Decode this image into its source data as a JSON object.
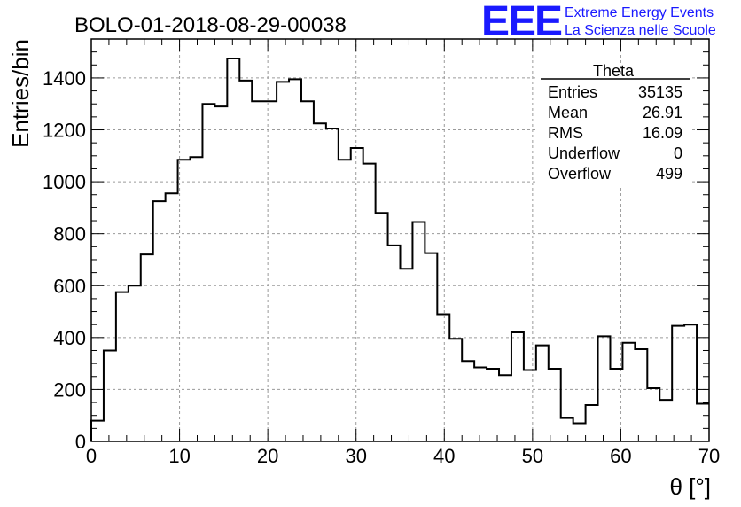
{
  "header": {
    "run_title": "BOLO-01-2018-08-29-00038",
    "logo_text": "EEE",
    "logo_line1": "Extreme Energy Events",
    "logo_line2": "La Scienza nelle Scuole",
    "logo_color": "#1a1aff"
  },
  "stats_box": {
    "title": "Theta",
    "rows": [
      {
        "label": "Entries",
        "value": "35135"
      },
      {
        "label": "Mean",
        "value": "26.91"
      },
      {
        "label": "RMS",
        "value": "16.09"
      },
      {
        "label": "Underflow",
        "value": "0"
      },
      {
        "label": "Overflow",
        "value": "499"
      }
    ]
  },
  "chart_data": {
    "type": "bar",
    "histogram_type": "step",
    "xlabel": "θ [°]",
    "ylabel": "Entries/bin",
    "xlim": [
      0,
      70
    ],
    "ylim": [
      0,
      1550
    ],
    "bin_width": 1.4,
    "x_ticks": [
      0,
      10,
      20,
      30,
      40,
      50,
      60,
      70
    ],
    "y_ticks": [
      0,
      200,
      400,
      600,
      800,
      1000,
      1200,
      1400
    ],
    "grid": true,
    "values": [
      80,
      350,
      575,
      600,
      720,
      925,
      955,
      1085,
      1095,
      1300,
      1290,
      1475,
      1390,
      1310,
      1310,
      1385,
      1395,
      1310,
      1225,
      1205,
      1085,
      1130,
      1070,
      880,
      755,
      665,
      845,
      725,
      490,
      395,
      310,
      285,
      280,
      255,
      420,
      275,
      370,
      280,
      90,
      70,
      140,
      405,
      280,
      380,
      355,
      205,
      160,
      445,
      450,
      145
    ]
  }
}
